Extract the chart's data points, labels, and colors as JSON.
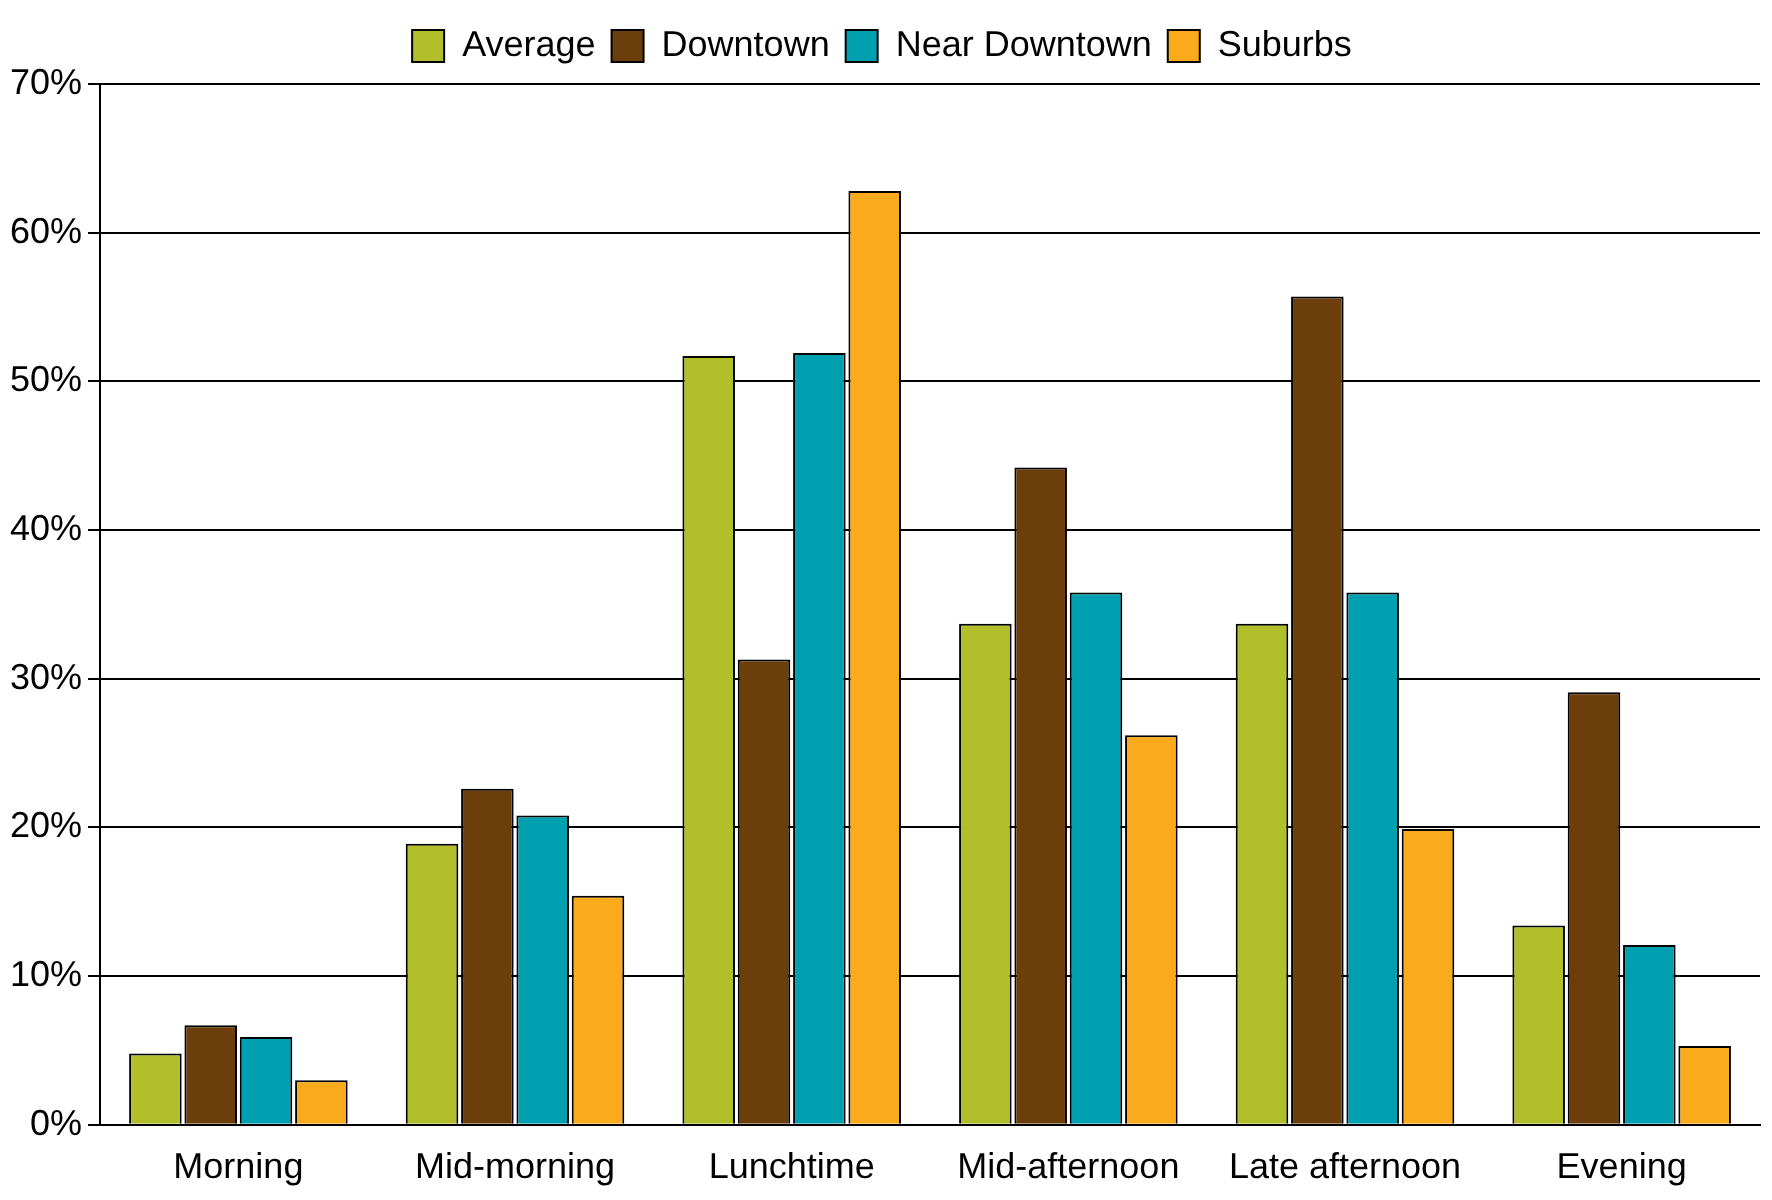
{
  "chart_data": {
    "type": "bar",
    "categories": [
      "Morning",
      "Mid-morning",
      "Lunchtime",
      "Mid-afternoon",
      "Late afternoon",
      "Evening"
    ],
    "series": [
      {
        "name": "Average",
        "color": "#b0bf2a",
        "values": [
          4.8,
          18.9,
          51.7,
          33.7,
          33.7,
          13.4
        ]
      },
      {
        "name": "Downtown",
        "color": "#6b3e0b",
        "values": [
          6.7,
          22.6,
          31.3,
          44.2,
          55.7,
          29.1
        ]
      },
      {
        "name": "Near Downtown",
        "color": "#00a0b0",
        "values": [
          5.9,
          20.8,
          51.9,
          35.8,
          35.8,
          12.1
        ]
      },
      {
        "name": "Suburbs",
        "color": "#f9ab1b",
        "values": [
          3.0,
          15.4,
          62.8,
          26.2,
          19.9,
          5.3
        ]
      }
    ],
    "ylim": [
      0,
      70
    ],
    "yticks": [
      {
        "value": 0,
        "label": "0%"
      },
      {
        "value": 10,
        "label": "10%"
      },
      {
        "value": 20,
        "label": "20%"
      },
      {
        "value": 30,
        "label": "30%"
      },
      {
        "value": 40,
        "label": "40%"
      },
      {
        "value": 50,
        "label": "50%"
      },
      {
        "value": 60,
        "label": "60%"
      },
      {
        "value": 70,
        "label": "70%"
      }
    ],
    "grid": "y",
    "legend": "top"
  }
}
